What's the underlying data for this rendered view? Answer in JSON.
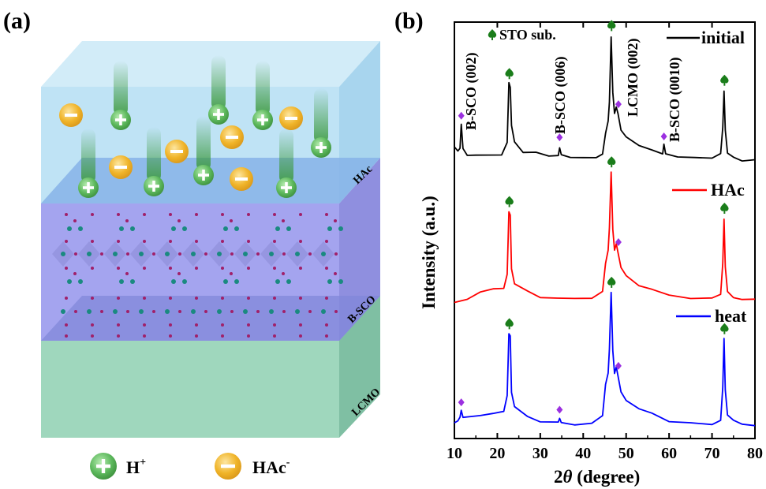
{
  "panel_a": {
    "label": "(a)",
    "layers": {
      "top": "HAc",
      "middle": "B-SCO",
      "bottom": "LCMO"
    },
    "legend": {
      "cation": "H",
      "cation_sup": "+",
      "anion": "HAc",
      "anion_sup": "-"
    },
    "colors": {
      "proton": "#5cb85c",
      "anion": "#f0b429",
      "hac_layer": "#bfe3f5",
      "bsco_layer": "#9f9ff0",
      "lcmo_layer": "#9fd7bd",
      "cobalt_atom": "#1a8a80",
      "oxygen_atom": "#a0206a"
    }
  },
  "panel_b": {
    "label": "(b)"
  },
  "chart_data": {
    "type": "line",
    "xlabel_prefix": "2",
    "xlabel_symbol": "θ",
    "xlabel_suffix": " (degree)",
    "ylabel": "Intensity (a.u.)",
    "xlim": [
      10,
      80
    ],
    "xticks": [
      10,
      20,
      30,
      40,
      50,
      60,
      70,
      80
    ],
    "legend_sto": "STO sub.",
    "peak_labels": [
      "B-SCO (002)",
      "B-SCO (006)",
      "LCMO (002)",
      "B-SCO (0010)"
    ],
    "series": [
      {
        "name": "initial",
        "color": "#000000",
        "baseline": 0.3,
        "points": [
          [
            10,
            0.9
          ],
          [
            10.8,
            0.75
          ],
          [
            11.3,
            0.9
          ],
          [
            11.6,
            2.2
          ],
          [
            12.0,
            0.8
          ],
          [
            13,
            0.5
          ],
          [
            15,
            0.45
          ],
          [
            18,
            0.4
          ],
          [
            21,
            0.4
          ],
          [
            22.3,
            1.2
          ],
          [
            22.7,
            4.7
          ],
          [
            23.0,
            4.6
          ],
          [
            23.3,
            2.2
          ],
          [
            24,
            1.2
          ],
          [
            26,
            0.55
          ],
          [
            29,
            0.45
          ],
          [
            32,
            0.35
          ],
          [
            34.2,
            0.35
          ],
          [
            34.5,
            0.9
          ],
          [
            34.9,
            0.35
          ],
          [
            37,
            0.25
          ],
          [
            40,
            0.25
          ],
          [
            43,
            0.3
          ],
          [
            44.5,
            0.5
          ],
          [
            45.2,
            1.8
          ],
          [
            45.8,
            2.4
          ],
          [
            46.1,
            3.6
          ],
          [
            46.5,
            7.6
          ],
          [
            46.9,
            4.2
          ],
          [
            47.3,
            2.8
          ],
          [
            47.7,
            3.3
          ],
          [
            48.1,
            2.9
          ],
          [
            48.8,
            1.8
          ],
          [
            50,
            1.5
          ],
          [
            53,
            1.0
          ],
          [
            56,
            0.7
          ],
          [
            58.5,
            0.5
          ],
          [
            58.8,
            0.95
          ],
          [
            59.2,
            0.5
          ],
          [
            62,
            0.3
          ],
          [
            66,
            0.25
          ],
          [
            70,
            0.2
          ],
          [
            72.0,
            0.5
          ],
          [
            72.5,
            2.0
          ],
          [
            72.8,
            4.3
          ],
          [
            73.1,
            2.0
          ],
          [
            73.6,
            0.5
          ],
          [
            75,
            0.35
          ],
          [
            77,
            0.15
          ],
          [
            80,
            0.1
          ]
        ]
      },
      {
        "name": "HAc",
        "color": "#ff0000",
        "baseline": 0.3,
        "points": [
          [
            10,
            0.0
          ],
          [
            13,
            0.2
          ],
          [
            16,
            0.5
          ],
          [
            19,
            0.7
          ],
          [
            21.5,
            0.9
          ],
          [
            22.3,
            1.6
          ],
          [
            22.7,
            5.4
          ],
          [
            23.0,
            5.3
          ],
          [
            23.3,
            1.9
          ],
          [
            24,
            1.0
          ],
          [
            27,
            0.55
          ],
          [
            30,
            0.3
          ],
          [
            34,
            0.15
          ],
          [
            38,
            0.15
          ],
          [
            42,
            0.25
          ],
          [
            44.5,
            0.6
          ],
          [
            45.2,
            2.4
          ],
          [
            45.8,
            3.0
          ],
          [
            46.1,
            4.5
          ],
          [
            46.5,
            7.8
          ],
          [
            46.9,
            4.4
          ],
          [
            47.3,
            3.0
          ],
          [
            47.7,
            3.4
          ],
          [
            48.1,
            3.0
          ],
          [
            48.8,
            2.0
          ],
          [
            50,
            1.6
          ],
          [
            53,
            1.0
          ],
          [
            56,
            0.65
          ],
          [
            60,
            0.4
          ],
          [
            65,
            0.25
          ],
          [
            70,
            0.2
          ],
          [
            72.0,
            0.5
          ],
          [
            72.5,
            2.3
          ],
          [
            72.8,
            5.0
          ],
          [
            73.1,
            2.1
          ],
          [
            73.6,
            0.5
          ],
          [
            75,
            0.3
          ],
          [
            77,
            0.15
          ],
          [
            80,
            0.1
          ]
        ]
      },
      {
        "name": "heat",
        "color": "#0000ff",
        "baseline": 0.3,
        "points": [
          [
            10,
            0.3
          ],
          [
            10.8,
            0.35
          ],
          [
            11.3,
            0.55
          ],
          [
            11.6,
            0.9
          ],
          [
            12.0,
            0.5
          ],
          [
            13,
            0.6
          ],
          [
            16,
            0.65
          ],
          [
            19,
            0.8
          ],
          [
            21.5,
            1.0
          ],
          [
            22.3,
            1.8
          ],
          [
            22.7,
            5.6
          ],
          [
            23.0,
            5.5
          ],
          [
            23.3,
            2.0
          ],
          [
            24,
            1.1
          ],
          [
            27,
            0.6
          ],
          [
            30,
            0.4
          ],
          [
            34.2,
            0.25
          ],
          [
            34.5,
            0.45
          ],
          [
            34.9,
            0.25
          ],
          [
            38,
            0.15
          ],
          [
            42,
            0.25
          ],
          [
            44.5,
            0.6
          ],
          [
            45.2,
            2.6
          ],
          [
            45.8,
            3.2
          ],
          [
            46.1,
            4.8
          ],
          [
            46.5,
            8.1
          ],
          [
            46.9,
            4.6
          ],
          [
            47.3,
            3.2
          ],
          [
            47.7,
            3.5
          ],
          [
            48.1,
            3.1
          ],
          [
            48.8,
            2.1
          ],
          [
            50,
            1.7
          ],
          [
            53,
            1.1
          ],
          [
            56,
            0.7
          ],
          [
            60,
            0.4
          ],
          [
            65,
            0.25
          ],
          [
            70,
            0.2
          ],
          [
            72.0,
            0.5
          ],
          [
            72.5,
            2.4
          ],
          [
            72.8,
            5.3
          ],
          [
            73.1,
            2.2
          ],
          [
            73.6,
            0.6
          ],
          [
            75,
            0.4
          ],
          [
            77,
            0.15
          ],
          [
            80,
            0.1
          ]
        ]
      }
    ],
    "sto_markers": {
      "initial": [
        22.8,
        46.6,
        72.9
      ],
      "HAc": [
        22.8,
        46.6,
        72.9
      ],
      "heat": [
        22.8,
        46.6,
        72.9
      ]
    },
    "bsco_markers": {
      "initial": [
        11.6,
        34.5,
        48.2,
        58.8
      ],
      "HAc": [
        48.2
      ],
      "heat": [
        11.6,
        34.5,
        48.2
      ]
    },
    "marker_colors": {
      "sto": "#1a7d1a",
      "bsco": "#9b30e0"
    }
  }
}
